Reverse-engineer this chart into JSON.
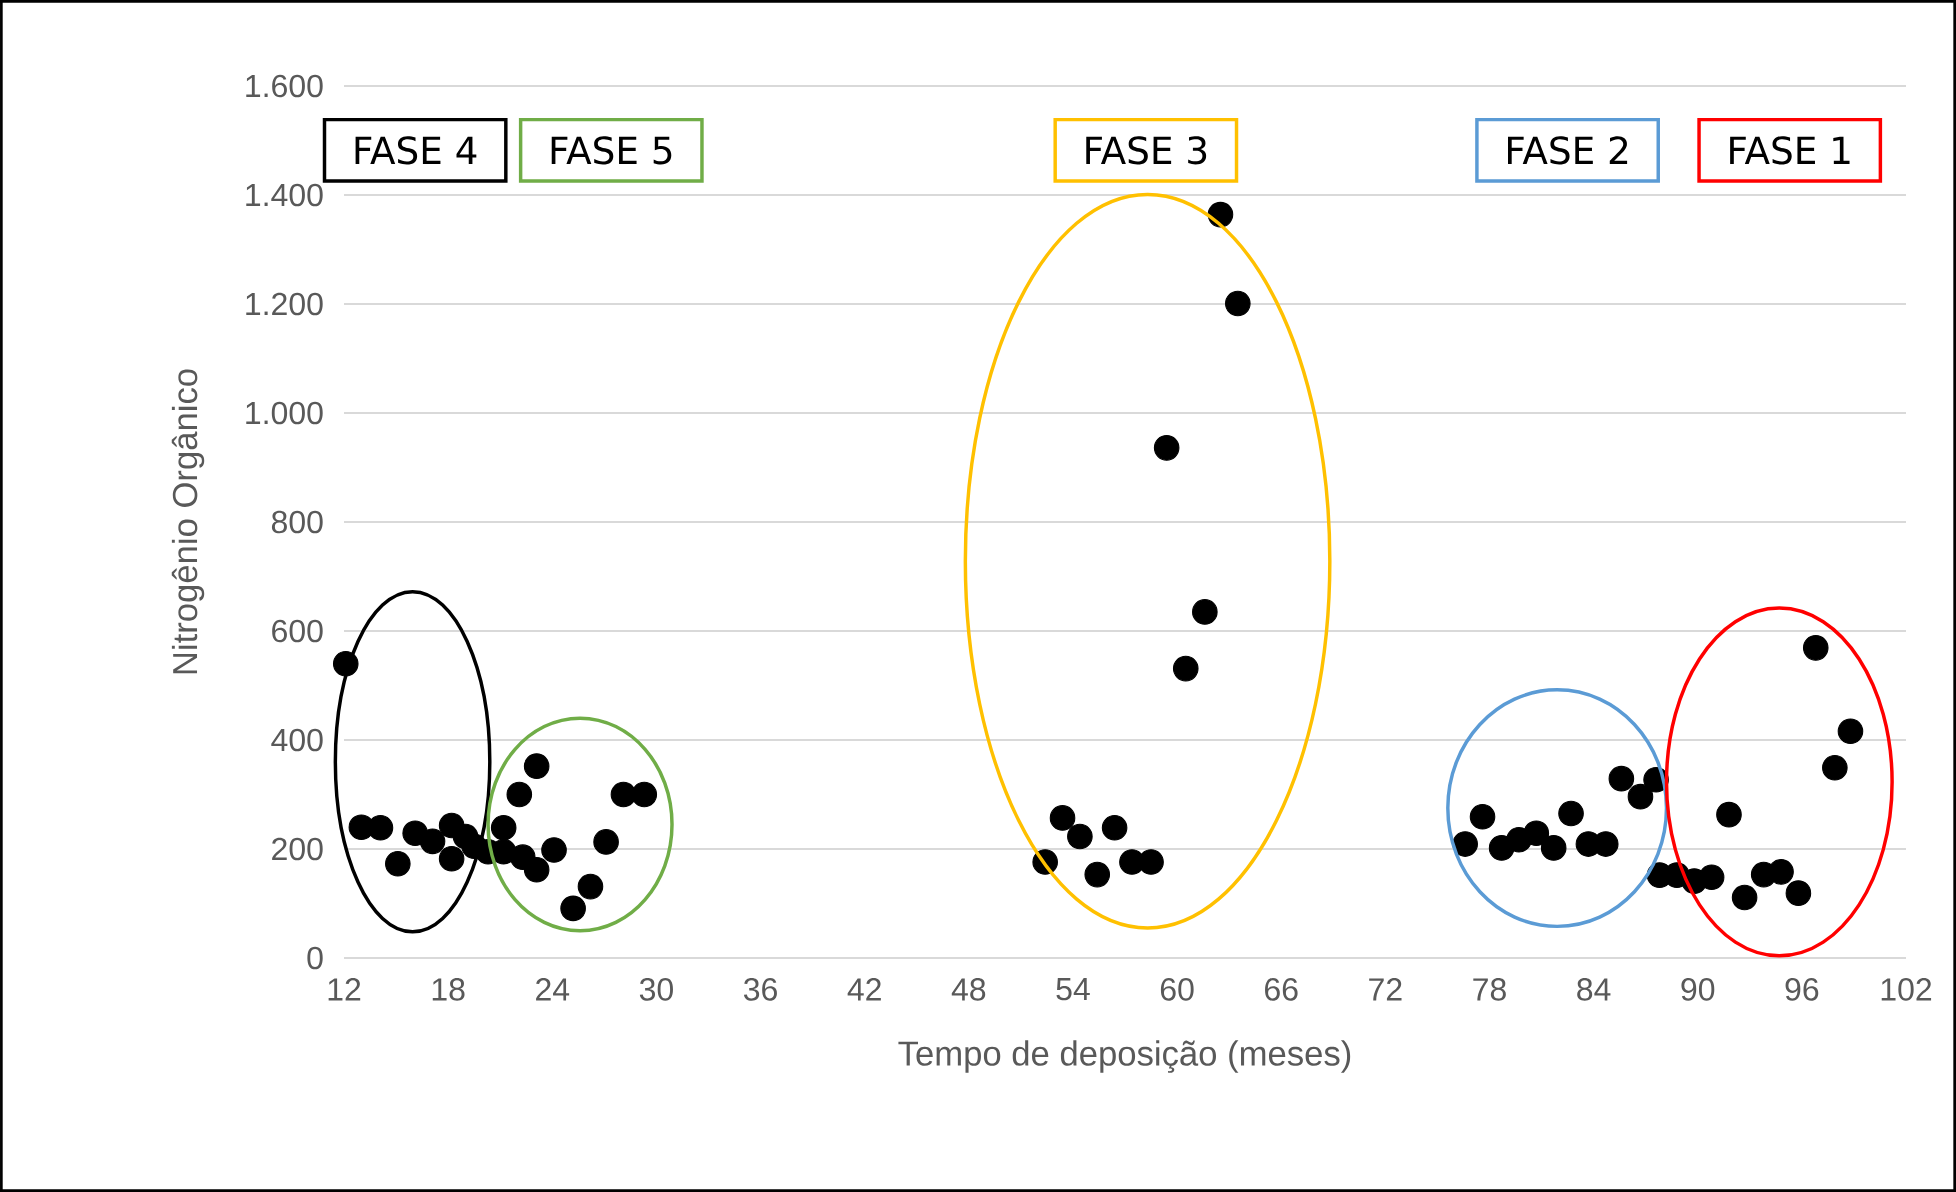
{
  "chart_data": {
    "type": "scatter",
    "xlabel": "Tempo de deposição (meses)",
    "ylabel": "Nitrogênio Orgânico",
    "xlim": [
      12,
      102
    ],
    "xticks": [
      12,
      18,
      24,
      30,
      36,
      42,
      48,
      54,
      60,
      66,
      72,
      78,
      84,
      90,
      96,
      102
    ],
    "ylim": [
      0,
      1600
    ],
    "yticks": [
      0,
      200,
      400,
      600,
      800,
      {
        "value": 1000,
        "label": "1.000"
      },
      {
        "value": 1200,
        "label": "1.200"
      },
      {
        "value": 1400,
        "label": "1.400"
      },
      {
        "value": 1600,
        "label": "1.600"
      }
    ],
    "grid": "y",
    "marker": "circle",
    "series": [
      {
        "color": "#000000",
        "x": [
          12.1,
          13.0,
          14.1,
          15.1,
          16.1,
          17.1,
          18.2,
          18.2,
          19.0,
          19.5,
          20.3,
          21.2,
          21.2,
          22.1,
          23.1,
          22.3,
          23.1,
          24.1,
          26.2,
          25.2,
          27.1,
          28.1,
          29.3,
          62.5,
          63.5,
          59.4,
          61.6,
          60.5,
          53.4,
          54.4,
          56.4,
          52.4,
          55.4,
          57.4,
          58.5,
          76.6,
          77.6,
          78.7,
          79.7,
          80.7,
          81.7,
          82.7,
          83.7,
          84.7,
          85.6,
          86.7,
          87.6,
          87.8,
          88.8,
          89.8,
          90.8,
          91.8,
          92.7,
          93.8,
          94.8,
          95.8,
          96.8,
          97.9,
          98.8
        ],
        "values": [
          540,
          240,
          239,
          173,
          229,
          214,
          243,
          182,
          223,
          205,
          195,
          239,
          195,
          300,
          352,
          185,
          162,
          198,
          131,
          91,
          213,
          300,
          300,
          1364,
          1201,
          936,
          635,
          531,
          257,
          223,
          239,
          176,
          153,
          176,
          176,
          209,
          259,
          202,
          217,
          229,
          202,
          265,
          209,
          209,
          329,
          296,
          327,
          152,
          152,
          141,
          148,
          263,
          111,
          153,
          158,
          119,
          569,
          349,
          416
        ]
      }
    ],
    "annotations": [
      "FASE 4",
      "FASE 5",
      "FASE 3",
      "FASE 2",
      "FASE 1"
    ]
  }
}
